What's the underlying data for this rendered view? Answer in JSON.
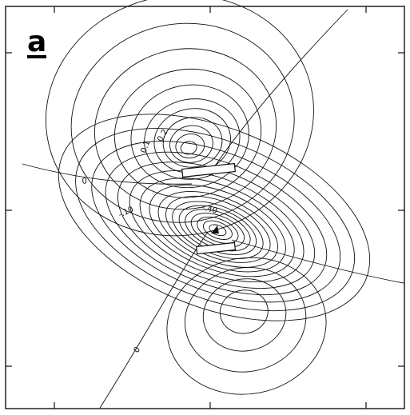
{
  "panel": {
    "letter": "a"
  },
  "contour_labels": {
    "zero_left": "0",
    "zero_bottom": "0",
    "upper_outer": "0.1",
    "upper_inner": "0.2",
    "lower_left": "-.10",
    "lower_right": "-.40"
  }
}
